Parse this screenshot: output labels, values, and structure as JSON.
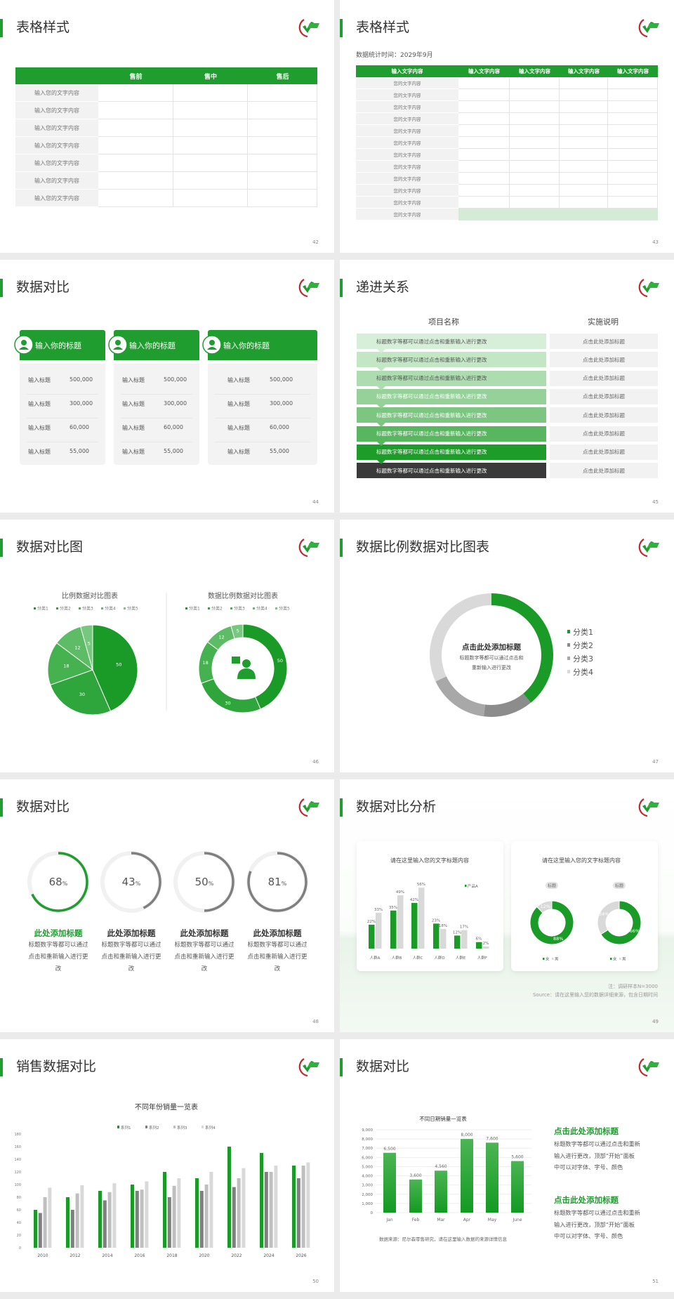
{
  "brand": {
    "accent": "#1f9d2e",
    "logo": "green-check-logo"
  },
  "s42": {
    "title": "表格样式",
    "page": "42",
    "headers": [
      "",
      "售前",
      "售中",
      "售后"
    ],
    "row_labels": [
      "输入您的文字内容",
      "输入您的文字内容",
      "输入您的文字内容",
      "输入您的文字内容",
      "输入您的文字内容",
      "输入您的文字内容",
      "输入您的文字内容"
    ]
  },
  "s43": {
    "title": "表格样式",
    "page": "43",
    "subtitle": "数据统计时间：2029年9月",
    "headers": [
      "输入文字内容",
      "输入文字内容",
      "输入文字内容",
      "输入文字内容",
      "输入文字内容"
    ],
    "row_labels": [
      "您的文字内容",
      "您的文字内容",
      "您的文字内容",
      "您的文字内容",
      "您的文字内容",
      "您的文字内容",
      "您的文字内容",
      "您的文字内容",
      "您的文字内容",
      "您的文字内容",
      "您的文字内容",
      "您的文字内容"
    ]
  },
  "s44": {
    "title": "数据对比",
    "page": "44",
    "cards": [
      {
        "title": "输入你的标题",
        "icon": "phone-user-icon",
        "rows": [
          {
            "label": "输入标题",
            "value": "500,000"
          },
          {
            "label": "输入标题",
            "value": "300,000"
          },
          {
            "label": "输入标题",
            "value": "60,000"
          },
          {
            "label": "输入标题",
            "value": "55,000"
          }
        ]
      },
      {
        "title": "输入你的标题",
        "icon": "user-settings-icon",
        "rows": [
          {
            "label": "输入标题",
            "value": "500,000"
          },
          {
            "label": "输入标题",
            "value": "300,000"
          },
          {
            "label": "输入标题",
            "value": "60,000"
          },
          {
            "label": "输入标题",
            "value": "55,000"
          }
        ]
      },
      {
        "title": "输入你的标题",
        "icon": "team-icon",
        "rows": [
          {
            "label": "输入标题",
            "value": "500,000"
          },
          {
            "label": "输入标题",
            "value": "300,000"
          },
          {
            "label": "输入标题",
            "value": "60,000"
          },
          {
            "label": "输入标题",
            "value": "55,000"
          }
        ]
      }
    ]
  },
  "s45": {
    "title": "递进关系",
    "page": "45",
    "col_headers": [
      "项目名称",
      "实施说明"
    ],
    "colors": [
      "#d7eed8",
      "#c3e6c5",
      "#addcb0",
      "#95d199",
      "#7cc682",
      "#57b65e",
      "#1e9c2a",
      "#3a3a3a"
    ],
    "steps": [
      {
        "text": "标题数字等都可以通过点击和重新输入进行更改",
        "note": "点击此处添加标题"
      },
      {
        "text": "标题数字等都可以通过点击和重新输入进行更改",
        "note": "点击此处添加标题"
      },
      {
        "text": "标题数字等都可以通过点击和重新输入进行更改",
        "note": "点击此处添加标题"
      },
      {
        "text": "标题数字等都可以通过点击和重新输入进行更改",
        "note": "点击此处添加标题"
      },
      {
        "text": "标题数字等都可以通过点击和重新输入进行更改",
        "note": "点击此处添加标题"
      },
      {
        "text": "标题数字等都可以通过点击和重新输入进行更改",
        "note": "点击此处添加标题"
      },
      {
        "text": "标题数字等都可以通过点击和重新输入进行更改",
        "note": "点击此处添加标题"
      },
      {
        "text": "标题数字等都可以通过点击和重新输入进行更改",
        "note": "点击此处添加标题"
      }
    ]
  },
  "s46": {
    "title": "数据对比图",
    "page": "46"
  },
  "s47": {
    "title": "数据比例数据对比图表",
    "page": "47",
    "center_title": "点击此处添加标题",
    "center_lines": [
      "标题数字等都可以通过点击和",
      "重新输入进行更改"
    ]
  },
  "s48": {
    "title": "数据对比",
    "page": "48",
    "unit": "%",
    "items": [
      {
        "value": 68,
        "color": "#1f9d2e",
        "heading": "此处添加标题",
        "desc": "标题数字等都可以通过点击和重新输入进行更改"
      },
      {
        "value": 43,
        "color": "#7f7f7f",
        "heading": "此处添加标题",
        "desc": "标题数字等都可以通过点击和重新输入进行更改"
      },
      {
        "value": 50,
        "color": "#7f7f7f",
        "heading": "此处添加标题",
        "desc": "标题数字等都可以通过点击和重新输入进行更改"
      },
      {
        "value": 81,
        "color": "#7f7f7f",
        "heading": "此处添加标题",
        "desc": "标题数字等都可以通过点击和重新输入进行更改"
      }
    ]
  },
  "s49": {
    "title": "数据对比分析",
    "page": "49",
    "note": "注：调研样本N=3000",
    "source": "Source：请在这里输入您的数据详细来源，包含日期时间"
  },
  "s50": {
    "title": "销售数据对比",
    "page": "50"
  },
  "s51": {
    "title": "数据对比",
    "page": "51",
    "source": "数据来源：尼尔森零售研究，请在这里输入数据的来源详情信息",
    "blocks": [
      {
        "heading": "点击此处添加标题",
        "lines": [
          "标题数字等都可以通过点击和重新",
          "输入进行更改，顶部“开始”面板",
          "中可以对字体、字号、颜色"
        ]
      },
      {
        "heading": "点击此处添加标题",
        "lines": [
          "标题数字等都可以通过点击和重新",
          "输入进行更改，顶部“开始”面板",
          "中可以对字体、字号、颜色"
        ]
      }
    ]
  },
  "chart_data": [
    {
      "type": "pie",
      "title": "比例数据对比图表",
      "categories": [
        "分类1",
        "分类2",
        "分类3",
        "分类4",
        "分类5"
      ],
      "values": [
        50,
        30,
        18,
        12,
        5
      ],
      "colors": [
        "#1a9a27",
        "#2fa63b",
        "#46b14f",
        "#5dbc65",
        "#78c77f"
      ],
      "legend": "top"
    },
    {
      "type": "pie",
      "variant": "donut",
      "title": "数据比例数据对比图表",
      "categories": [
        "分类1",
        "分类2",
        "分类3",
        "分类4",
        "分类5"
      ],
      "values": [
        50,
        30,
        18,
        12,
        5
      ],
      "colors": [
        "#1a9a27",
        "#2fa63b",
        "#46b14f",
        "#5dbc65",
        "#78c77f"
      ],
      "legend": "top",
      "center_icon": "presenter-icon"
    },
    {
      "type": "pie",
      "variant": "donut",
      "categories": [
        "分类1",
        "分类2",
        "分类3",
        "分类4"
      ],
      "values": [
        39,
        13,
        16,
        32
      ],
      "colors": [
        "#1a9a27",
        "#8c8c8c",
        "#a8a8a8",
        "#d9d9d9"
      ],
      "legend": "right"
    },
    {
      "type": "bar",
      "title": "请在这里输入您的文字标题内容",
      "categories": [
        "人群A",
        "人群B",
        "人群C",
        "人群D",
        "人群E",
        "人群F"
      ],
      "series": [
        {
          "name": "产品A",
          "values": [
            22,
            35,
            42,
            23,
            12,
            6
          ],
          "color": "#1a9a27"
        },
        {
          "values": [
            33,
            49,
            56,
            18,
            17,
            2
          ],
          "color": "#d9d9d9"
        }
      ],
      "value_suffix": "%",
      "legend": "top-right"
    },
    {
      "type": "pie",
      "variant": "donut",
      "title": "请在这里输入您的文字标题内容",
      "label": "标题",
      "categories": [
        "女",
        "男"
      ],
      "values": [
        88,
        12
      ],
      "colors": [
        "#1a9a27",
        "#d9d9d9"
      ],
      "value_suffix": "%",
      "legend": "bottom"
    },
    {
      "type": "pie",
      "variant": "donut",
      "label": "标题",
      "categories": [
        "女",
        "男"
      ],
      "values": [
        66,
        34
      ],
      "colors": [
        "#1a9a27",
        "#d9d9d9"
      ],
      "value_suffix": "%",
      "legend": "bottom"
    },
    {
      "type": "bar",
      "title": "不同年份销量一览表",
      "categories": [
        "2010",
        "2012",
        "2014",
        "2016",
        "2018",
        "2020",
        "2022",
        "2024",
        "2026"
      ],
      "series": [
        {
          "name": "系列1",
          "values": [
            60,
            80,
            90,
            100,
            120,
            110,
            160,
            150,
            130
          ],
          "color": "#1a9a27"
        },
        {
          "name": "系列2",
          "values": [
            55,
            60,
            75,
            90,
            80,
            90,
            96,
            120,
            110
          ],
          "color": "#7f7f7f"
        },
        {
          "name": "系列3",
          "values": [
            80,
            86,
            88,
            92,
            98,
            100,
            110,
            120,
            130
          ],
          "color": "#bfbfbf"
        },
        {
          "name": "系列4",
          "values": [
            95,
            99,
            102,
            105,
            110,
            120,
            126,
            130,
            135
          ],
          "color": "#d9d9d9"
        }
      ],
      "ylim": [
        0,
        180
      ],
      "yticks": [
        0,
        20,
        40,
        60,
        80,
        100,
        120,
        140,
        160,
        180
      ],
      "legend": "top",
      "grid": false
    },
    {
      "type": "bar",
      "title": "不同日期销量一览表",
      "categories": [
        "Jan",
        "Feb",
        "Mar",
        "Apr",
        "May",
        "June"
      ],
      "values": [
        6500,
        3600,
        4560,
        8000,
        7600,
        5600
      ],
      "ylim": [
        0,
        9000
      ],
      "yticks": [
        "0",
        "1,000",
        "2,000",
        "3,000",
        "4,000",
        "5,000",
        "6,000",
        "7,000",
        "8,000",
        "9,000"
      ],
      "grid": true,
      "color": "#1a9a27"
    }
  ]
}
